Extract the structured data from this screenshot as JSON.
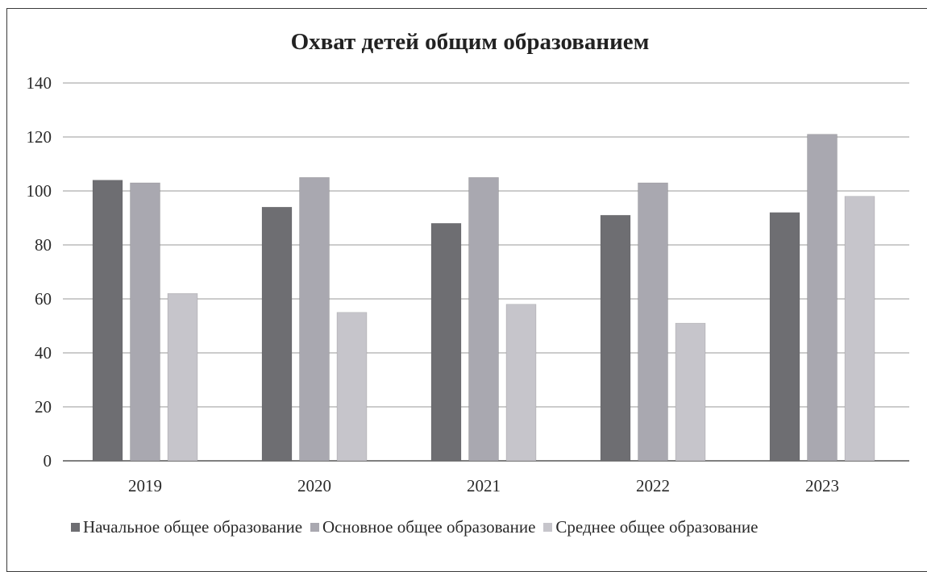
{
  "chart_data": {
    "type": "bar",
    "title": "Охват детей общим образованием",
    "xlabel": "",
    "ylabel": "",
    "categories": [
      "2019",
      "2020",
      "2021",
      "2022",
      "2023"
    ],
    "series": [
      {
        "name": "Начальное общее образование",
        "values": [
          104,
          94,
          88,
          91,
          92
        ],
        "color": "#6e6e72"
      },
      {
        "name": "Основное общее образование",
        "values": [
          103,
          105,
          105,
          103,
          121
        ],
        "color": "#a9a8b0"
      },
      {
        "name": "Среднее общее образование",
        "values": [
          62,
          55,
          58,
          51,
          98
        ],
        "color": "#c6c5cb"
      }
    ],
    "ylim": [
      0,
      140
    ],
    "yticks": [
      0,
      20,
      40,
      60,
      80,
      100,
      120,
      140
    ],
    "grid": true,
    "legend_position": "bottom"
  }
}
